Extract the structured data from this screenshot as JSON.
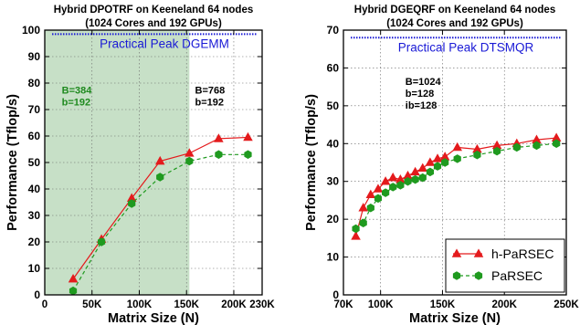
{
  "chart_data": [
    {
      "type": "line",
      "title": "Hybrid DPOTRF on Keeneland 64 nodes",
      "subtitle": "(1024 Cores and 192 GPUs)",
      "xlabel": "Matrix Size (N)",
      "ylabel": "Performance (Tflop/s)",
      "xlim": [
        0,
        230000
      ],
      "ylim": [
        0,
        100
      ],
      "x_ticks": [
        0,
        50000,
        100000,
        150000,
        200000,
        230000
      ],
      "x_tick_labels": [
        "0",
        "50K",
        "100K",
        "150K",
        "200K",
        "230K"
      ],
      "y_ticks": [
        0,
        10,
        20,
        30,
        40,
        50,
        60,
        70,
        80,
        90,
        100
      ],
      "y_tick_labels": [
        "0",
        "10",
        "20",
        "30",
        "40",
        "50",
        "60",
        "70",
        "80",
        "90",
        "100"
      ],
      "grid": true,
      "shaded_region": {
        "x_start": 0,
        "x_end": 153000,
        "color": "#c7e0c7"
      },
      "reference_line": {
        "label": "Practical Peak DGEMM",
        "y": 98.5,
        "color": "#1a1ad6"
      },
      "annotations": [
        {
          "lines": [
            "B=384",
            "b=192"
          ],
          "x": 18000,
          "y": 76,
          "color": "#1f8a1f"
        },
        {
          "lines": [
            "B=768",
            "b=192"
          ],
          "x": 159000,
          "y": 76,
          "color": "#000000"
        }
      ],
      "series": [
        {
          "name": "h-PaRSEC",
          "color": "#e41a1c",
          "marker": "triangle",
          "dash": false,
          "x": [
            30000,
            60000,
            92000,
            122000,
            153000,
            184000,
            215000
          ],
          "values": [
            6,
            21,
            36.5,
            50.5,
            53.5,
            59,
            59.5
          ]
        },
        {
          "name": "PaRSEC",
          "color": "#1f9a1f",
          "marker": "hexagon",
          "dash": true,
          "x": [
            30000,
            60000,
            92000,
            122000,
            153000,
            184000,
            215000
          ],
          "values": [
            1.5,
            20,
            34.5,
            44.5,
            50.5,
            53,
            53
          ]
        }
      ]
    },
    {
      "type": "line",
      "title": "Hybrid DGEQRF on Keeneland 64 nodes",
      "subtitle": "(1024 Cores and 192 GPUs)",
      "xlabel": "Matrix Size (N)",
      "ylabel": "Performance (Tflop/s)",
      "xlim": [
        70000,
        250000
      ],
      "ylim": [
        0,
        70
      ],
      "x_ticks": [
        70000,
        100000,
        150000,
        200000,
        250000
      ],
      "x_tick_labels": [
        "70K",
        "100K",
        "150K",
        "200K",
        "250K"
      ],
      "y_ticks": [
        0,
        10,
        20,
        30,
        40,
        50,
        60,
        70
      ],
      "y_tick_labels": [
        "0",
        "10",
        "20",
        "30",
        "40",
        "50",
        "60",
        "70"
      ],
      "grid": true,
      "reference_line": {
        "label": "Practical Peak DTSMQR",
        "y": 68,
        "color": "#1a1ad6"
      },
      "annotations": [
        {
          "lines": [
            "B=1024",
            "b=128",
            "ib=128"
          ],
          "x": 120000,
          "y": 55.5,
          "color": "#000000"
        }
      ],
      "legend": {
        "position": "bottom-right"
      },
      "series": [
        {
          "name": "h-PaRSEC",
          "color": "#e41a1c",
          "marker": "triangle",
          "dash": false,
          "x": [
            80000,
            86000,
            92000,
            98000,
            104000,
            110000,
            116000,
            122000,
            128000,
            134000,
            140000,
            146000,
            152000,
            162000,
            178000,
            194000,
            210000,
            226000,
            242000
          ],
          "values": [
            15.5,
            23,
            26.5,
            28,
            30,
            31,
            30.5,
            31.5,
            32.5,
            33.5,
            35,
            36,
            36.5,
            39,
            38.5,
            39.5,
            40,
            41,
            41.5
          ]
        },
        {
          "name": "PaRSEC",
          "color": "#1f9a1f",
          "marker": "hexagon",
          "dash": true,
          "x": [
            80000,
            86000,
            92000,
            98000,
            104000,
            110000,
            116000,
            122000,
            128000,
            134000,
            140000,
            146000,
            152000,
            162000,
            178000,
            194000,
            210000,
            226000,
            242000
          ],
          "values": [
            17.5,
            19,
            23,
            25.5,
            27,
            28.5,
            29,
            30,
            30.5,
            31,
            32.5,
            34,
            35,
            36,
            37,
            38,
            39,
            39.5,
            40
          ]
        }
      ]
    }
  ]
}
